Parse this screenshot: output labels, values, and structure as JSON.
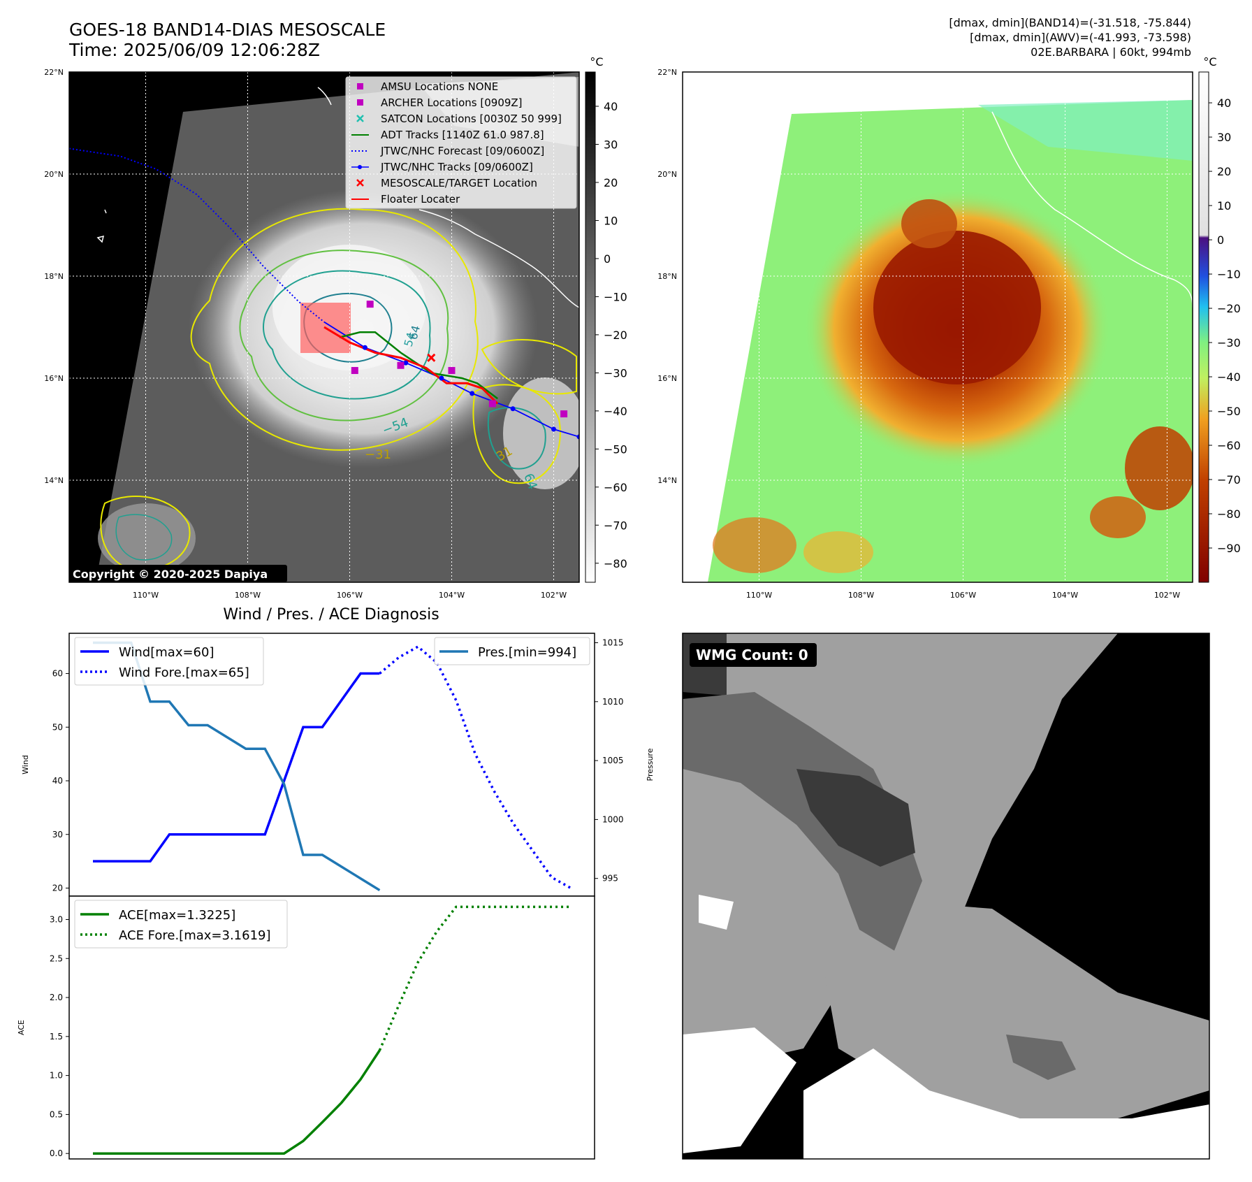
{
  "header": {
    "title_line1": "GOES-18 BAND14-DIAS MESOSCALE",
    "title_line2": "Time: 2025/06/09 12:06:28Z",
    "info_line1": "[dmax, dmin](BAND14)=(-31.518, -75.844)",
    "info_line2": "[dmax, dmin](AWV)=(-41.993, -73.598)",
    "info_line3": "02E.BARBARA | 60kt, 994mb"
  },
  "map_axes": {
    "lat_ticks": [
      "22°N",
      "20°N",
      "18°N",
      "16°N",
      "14°N"
    ],
    "lon_ticks": [
      "110°W",
      "108°W",
      "106°W",
      "104°W",
      "102°W"
    ],
    "lat_values": [
      22,
      20,
      18,
      16,
      14
    ],
    "lon_values": [
      -110,
      -108,
      -106,
      -104,
      -102
    ],
    "lat_range": [
      12.0,
      22.0
    ],
    "lon_range": [
      -111.5,
      -101.5
    ]
  },
  "ir_colorbar": {
    "unit": "°C",
    "ticks": [
      "40",
      "30",
      "20",
      "10",
      "0",
      "−10",
      "−20",
      "−30",
      "−40",
      "−50",
      "−60",
      "−70",
      "−80"
    ],
    "tick_values": [
      40,
      30,
      20,
      10,
      0,
      -10,
      -20,
      -30,
      -40,
      -50,
      -60,
      -70,
      -80
    ],
    "range": [
      -85,
      49
    ]
  },
  "wv_colorbar": {
    "unit": "°C",
    "ticks": [
      "40",
      "30",
      "20",
      "10",
      "0",
      "−10",
      "−20",
      "−30",
      "−40",
      "−50",
      "−60",
      "−70",
      "−80",
      "−90"
    ],
    "tick_values": [
      40,
      30,
      20,
      10,
      0,
      -10,
      -20,
      -30,
      -40,
      -50,
      -60,
      -70,
      -80,
      -90
    ],
    "range": [
      -100,
      49
    ]
  },
  "legend": {
    "items": [
      {
        "label": "AMSU Locations NONE",
        "symbol": "square",
        "color": "#c000c0"
      },
      {
        "label": "ARCHER Locations [0909Z]",
        "symbol": "square",
        "color": "#c000c0"
      },
      {
        "label": "SATCON Locations [0030Z 50 999]",
        "symbol": "x",
        "color": "#20c0b0"
      },
      {
        "label": "ADT Tracks [1140Z 61.0 987.8]",
        "symbol": "line",
        "color": "#008000"
      },
      {
        "label": "JTWC/NHC Forecast [09/0600Z]",
        "symbol": "dotted",
        "color": "#0000ff"
      },
      {
        "label": "JTWC/NHC Tracks [09/0600Z]",
        "symbol": "line-dot",
        "color": "#0000ff"
      },
      {
        "label": "MESOSCALE/TARGET Location",
        "symbol": "x",
        "color": "#ff0000"
      },
      {
        "label": "Floater Locater",
        "symbol": "line",
        "color": "#ff0000"
      }
    ]
  },
  "contour_labels": {
    "c54": "54",
    "c64": "64",
    "c31": "31",
    "c54b": "−54",
    "c31b": "−31",
    "c64b": "64"
  },
  "copyright": "Copyright © 2020-2025 Dapiya",
  "wmg": {
    "label": "WMG Count: 0"
  },
  "colors": {
    "wind": "#0000ff",
    "pressure": "#1f77b4",
    "ace": "#008000",
    "track": "#0000ff",
    "adt": "#008000",
    "floater": "#ff0000"
  },
  "chart_data": [
    {
      "type": "line",
      "title": "Wind / Pres. / ACE Diagnosis",
      "ylabel": "Wind",
      "ylabel_right": "Pressure",
      "ylim": [
        18.5,
        67.5
      ],
      "ylim_right": [
        993.5,
        1015.8
      ],
      "x": [
        0,
        1,
        2,
        3,
        4,
        5,
        6,
        7,
        8,
        9,
        10,
        11,
        12,
        13,
        14,
        15,
        16,
        17,
        18,
        19,
        20,
        21,
        22,
        23,
        24,
        25
      ],
      "series": [
        {
          "name": "Wind[max=60]",
          "axis": "left",
          "style": "solid",
          "x": [
            0,
            1,
            2,
            3,
            4,
            5,
            6,
            7,
            8,
            9,
            10,
            11,
            12,
            13,
            14,
            15
          ],
          "values": [
            25,
            25,
            25,
            25,
            30,
            30,
            30,
            30,
            30,
            30,
            40,
            50,
            50,
            55,
            60,
            60
          ]
        },
        {
          "name": "Wind Fore.[max=65]",
          "axis": "left",
          "style": "dotted",
          "x": [
            15,
            16,
            17,
            18,
            19,
            20,
            21,
            22,
            23,
            24,
            25
          ],
          "values": [
            60,
            63,
            65,
            62,
            55,
            45,
            38,
            32,
            27,
            22,
            20
          ]
        },
        {
          "name": "Pres.[min=994]",
          "axis": "right",
          "style": "solid",
          "x": [
            0,
            1,
            2,
            3,
            4,
            5,
            6,
            7,
            8,
            9,
            10,
            11,
            12,
            13,
            14,
            15
          ],
          "values": [
            1015,
            1015,
            1015,
            1010,
            1010,
            1008,
            1008,
            1007,
            1006,
            1006,
            1003,
            997,
            997,
            996,
            995,
            994
          ]
        }
      ],
      "yticks": [
        "20",
        "30",
        "40",
        "50",
        "60"
      ],
      "yticks_right": [
        "995",
        "1000",
        "1005",
        "1010",
        "1015"
      ]
    },
    {
      "type": "line",
      "ylabel": "ACE",
      "ylim": [
        -0.07,
        3.3
      ],
      "x": [
        0,
        1,
        2,
        3,
        4,
        5,
        6,
        7,
        8,
        9,
        10,
        11,
        12,
        13,
        14,
        15,
        16,
        17,
        18,
        19,
        20,
        21,
        22,
        23,
        24,
        25
      ],
      "series": [
        {
          "name": "ACE[max=1.3225]",
          "style": "solid",
          "x": [
            0,
            1,
            2,
            3,
            4,
            5,
            6,
            7,
            8,
            9,
            10,
            11,
            12,
            13,
            14,
            15
          ],
          "values": [
            0,
            0,
            0,
            0,
            0,
            0,
            0,
            0,
            0,
            0,
            0,
            0.16,
            0.4,
            0.65,
            0.95,
            1.3225
          ]
        },
        {
          "name": "ACE Fore.[max=3.1619]",
          "style": "dotted",
          "x": [
            15,
            16,
            17,
            18,
            19,
            20,
            21,
            22,
            23,
            24,
            25
          ],
          "values": [
            1.3225,
            1.9,
            2.45,
            2.85,
            3.1619,
            3.1619,
            3.1619,
            3.1619,
            3.1619,
            3.1619,
            3.1619
          ]
        }
      ],
      "yticks": [
        "0.0",
        "0.5",
        "1.0",
        "1.5",
        "2.0",
        "2.5",
        "3.0"
      ]
    }
  ]
}
